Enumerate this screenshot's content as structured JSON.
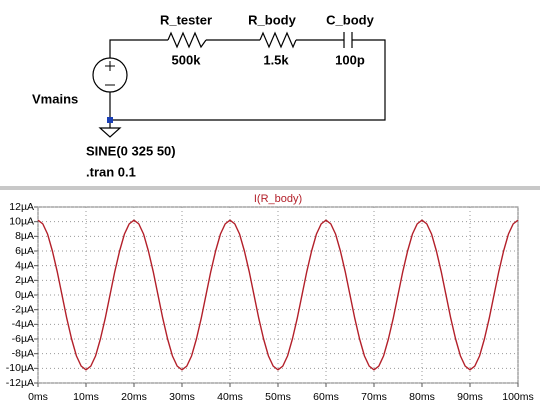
{
  "schematic": {
    "components": [
      {
        "name": "R_tester",
        "value": "500k"
      },
      {
        "name": "R_body",
        "value": "1.5k"
      },
      {
        "name": "C_body",
        "value": "100p"
      }
    ],
    "source": {
      "name": "Vmains",
      "spec": "SINE(0 325 50)"
    },
    "directive": ".tran 0.1"
  },
  "chart_data": {
    "type": "line",
    "title": "I(R_body)",
    "color": "#b3202a",
    "x": [
      0,
      1,
      2,
      3,
      4,
      5,
      6,
      7,
      8,
      9,
      10,
      11,
      12,
      13,
      14,
      15,
      16,
      17,
      18,
      19,
      20,
      21,
      22,
      23,
      24,
      25,
      26,
      27,
      28,
      29,
      30,
      31,
      32,
      33,
      34,
      35,
      36,
      37,
      38,
      39,
      40,
      41,
      42,
      43,
      44,
      45,
      46,
      47,
      48,
      49,
      50,
      51,
      52,
      53,
      54,
      55,
      56,
      57,
      58,
      59,
      60,
      61,
      62,
      63,
      64,
      65,
      66,
      67,
      68,
      69,
      70,
      71,
      72,
      73,
      74,
      75,
      76,
      77,
      78,
      79,
      80,
      81,
      82,
      83,
      84,
      85,
      86,
      87,
      88,
      89,
      90,
      91,
      92,
      93,
      94,
      95,
      96,
      97,
      98,
      99,
      100
    ],
    "values": [
      10.2,
      9.7,
      8.3,
      6,
      3.2,
      0,
      -3.2,
      -6,
      -8.3,
      -9.7,
      -10.2,
      -9.7,
      -8.3,
      -6,
      -3.2,
      0,
      3.2,
      6,
      8.3,
      9.7,
      10.2,
      9.7,
      8.3,
      6,
      3.2,
      0,
      -3.2,
      -6,
      -8.3,
      -9.7,
      -10.2,
      -9.7,
      -8.3,
      -6,
      -3.2,
      0,
      3.2,
      6,
      8.3,
      9.7,
      10.2,
      9.7,
      8.3,
      6,
      3.2,
      0,
      -3.2,
      -6,
      -8.3,
      -9.7,
      -10.2,
      -9.7,
      -8.3,
      -6,
      -3.2,
      0,
      3.2,
      6,
      8.3,
      9.7,
      10.2,
      9.7,
      8.3,
      6,
      3.2,
      0,
      -3.2,
      -6,
      -8.3,
      -9.7,
      -10.2,
      -9.7,
      -8.3,
      -6,
      -3.2,
      0,
      3.2,
      6,
      8.3,
      9.7,
      10.2,
      9.7,
      8.3,
      6,
      3.2,
      0,
      -3.2,
      -6,
      -8.3,
      -9.7,
      -10.2,
      -9.7,
      -8.3,
      -6,
      -3.2,
      0,
      3.2,
      6,
      8.3,
      9.7,
      10.2
    ],
    "xlim": [
      0,
      100
    ],
    "ylim": [
      -12,
      12
    ],
    "xticks": [
      {
        "value": 0,
        "label": "0ms"
      },
      {
        "value": 10,
        "label": "10ms"
      },
      {
        "value": 20,
        "label": "20ms"
      },
      {
        "value": 30,
        "label": "30ms"
      },
      {
        "value": 40,
        "label": "40ms"
      },
      {
        "value": 50,
        "label": "50ms"
      },
      {
        "value": 60,
        "label": "60ms"
      },
      {
        "value": 70,
        "label": "70ms"
      },
      {
        "value": 80,
        "label": "80ms"
      },
      {
        "value": 90,
        "label": "90ms"
      },
      {
        "value": 100,
        "label": "100ms"
      }
    ],
    "yticks": [
      {
        "value": 12,
        "label": "12µA"
      },
      {
        "value": 10,
        "label": "10µA"
      },
      {
        "value": 8,
        "label": "8µA"
      },
      {
        "value": 6,
        "label": "6µA"
      },
      {
        "value": 4,
        "label": "4µA"
      },
      {
        "value": 2,
        "label": "2µA"
      },
      {
        "value": 0,
        "label": "0µA"
      },
      {
        "value": -2,
        "label": "-2µA"
      },
      {
        "value": -4,
        "label": "-4µA"
      },
      {
        "value": -6,
        "label": "-6µA"
      },
      {
        "value": -8,
        "label": "-8µA"
      },
      {
        "value": -10,
        "label": "-10µA"
      },
      {
        "value": -12,
        "label": "-12µA"
      }
    ],
    "grid": true
  }
}
